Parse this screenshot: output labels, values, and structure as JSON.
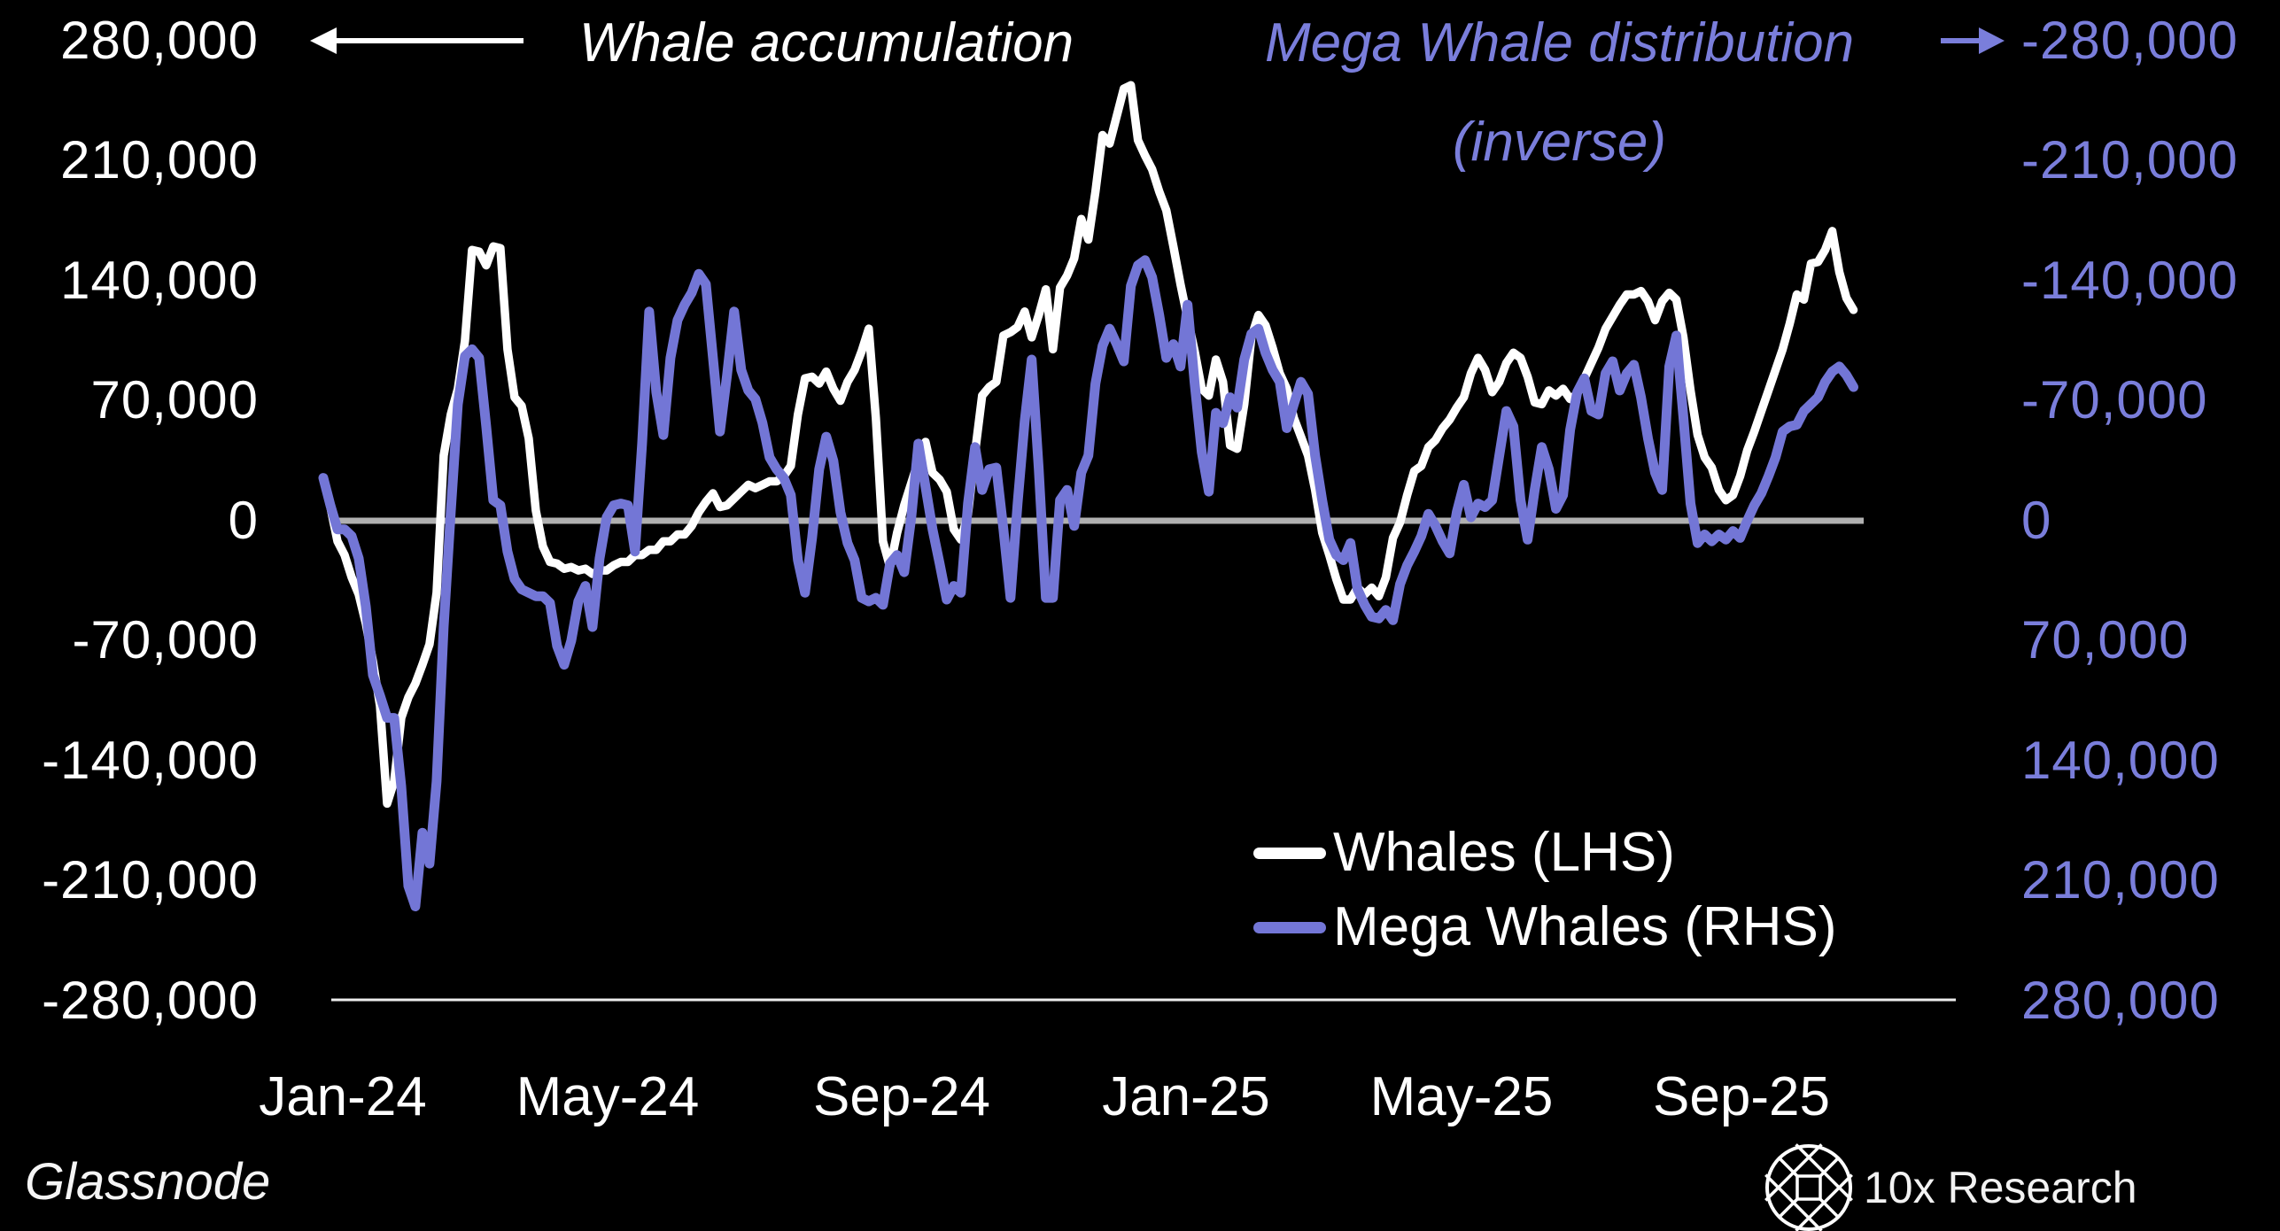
{
  "page": {
    "background": "#000000"
  },
  "header": {
    "left_title": "Whale accumulation",
    "right_title": "Mega Whale distribution",
    "right_subtitle": "(inverse)"
  },
  "axes": {
    "left": {
      "labels": [
        "280,000",
        "210,000",
        "140,000",
        "70,000",
        "0",
        "-70,000",
        "-140,000",
        "-210,000",
        "-280,000"
      ]
    },
    "right": {
      "labels": [
        "-280,000",
        "-210,000",
        "-140,000",
        "-70,000",
        "0",
        "70,000",
        "140,000",
        "210,000",
        "280,000"
      ]
    },
    "x": {
      "labels": [
        "Jan-24",
        "May-24",
        "Sep-24",
        "Jan-25",
        "May-25",
        "Sep-25"
      ]
    }
  },
  "legend": {
    "items": [
      {
        "label": "Whales (LHS)",
        "color": "#ffffff"
      },
      {
        "label": "Mega Whales (RHS)",
        "color": "#7376d6"
      }
    ]
  },
  "source_label": "Glassnode",
  "brand": {
    "name": "10x Research"
  },
  "colors": {
    "background": "#000000",
    "whales_line": "#ffffff",
    "mega_whales_line": "#7376d6",
    "purple_text": "#7a7edb",
    "zero_line": "#b0b0b0",
    "axis_line": "#ededed"
  },
  "chart_data": {
    "type": "line",
    "title": "Whale accumulation vs Mega Whale distribution (inverse)",
    "grid": false,
    "legend_position": "inside lower right",
    "x_axis": {
      "unit": "months since Jan-2024",
      "start_months": -0.277,
      "step_months": 0.1006,
      "tick_months": [
        0,
        4,
        8,
        12,
        16,
        20
      ],
      "tick_labels": [
        "Jan-24",
        "May-24",
        "Sep-24",
        "Jan-25",
        "May-25",
        "Sep-25"
      ]
    },
    "y_axis_left": {
      "title": "Whale accumulation",
      "range": [
        -280000,
        280000
      ],
      "tick_step": 70000
    },
    "y_axis_right": {
      "title": "Mega Whale distribution (inverse)",
      "range_displayed_top_to_bottom": [
        -280000,
        280000
      ],
      "inverted_mirror_of_left": true
    },
    "zero_baseline": 0,
    "unit_value": 1000,
    "series": [
      {
        "name": "Whales (LHS)",
        "axis": "left",
        "color": "#ffffff",
        "values": [
          25,
          8,
          -12,
          -20,
          -33,
          -43,
          -60,
          -82,
          -108,
          -165,
          -152,
          -115,
          -103,
          -95,
          -84,
          -72,
          -42,
          38,
          62,
          77,
          105,
          158,
          157,
          149,
          160,
          159,
          100,
          72,
          67,
          48,
          6,
          -15,
          -24,
          -25,
          -28,
          -27,
          -29,
          -28,
          -31,
          -29,
          -29,
          -26,
          -24,
          -24,
          -20,
          -20,
          -17,
          -17,
          -12,
          -12,
          -8,
          -8,
          -3,
          5,
          11,
          16,
          8,
          9,
          13,
          17,
          21,
          19,
          21,
          23,
          23,
          26,
          32,
          62,
          83,
          84,
          80,
          87,
          77,
          70,
          81,
          88,
          99,
          112,
          60,
          -12,
          -27,
          -7,
          9,
          22,
          35,
          46,
          28,
          24,
          17,
          -5,
          -11,
          4,
          40,
          73,
          78,
          81,
          108,
          110,
          113,
          122,
          107,
          120,
          135,
          100,
          136,
          143,
          153,
          176,
          164,
          192,
          225,
          220,
          236,
          252,
          254,
          222,
          213,
          205,
          192,
          181,
          160,
          138,
          118,
          99,
          77,
          73,
          94,
          81,
          44,
          42,
          68,
          107,
          120,
          114,
          101,
          86,
          77,
          60,
          49,
          38,
          18,
          -7,
          -20,
          -34,
          -46,
          -46,
          -39,
          -43,
          -39,
          -44,
          -33,
          -10,
          -1,
          15,
          29,
          32,
          43,
          47,
          54,
          59,
          66,
          72,
          86,
          95,
          88,
          75,
          81,
          92,
          98,
          95,
          84,
          69,
          68,
          76,
          73,
          77,
          71,
          74,
          83,
          92,
          101,
          112,
          119,
          126,
          132,
          132,
          134,
          128,
          117,
          128,
          133,
          129,
          107,
          76,
          50,
          37,
          31,
          18,
          12,
          15,
          26,
          41,
          52,
          64,
          76,
          88,
          100,
          115,
          132,
          129,
          150,
          151,
          158,
          169,
          145,
          130,
          123
        ]
      },
      {
        "name": "Mega Whales (RHS)",
        "axis": "right-inverse",
        "color": "#7376d6",
        "values": [
          25,
          9,
          -5,
          -5,
          -9,
          -22,
          -50,
          -90,
          -102,
          -115,
          -115,
          -155,
          -213,
          -225,
          -182,
          -200,
          -152,
          -62,
          5,
          68,
          96,
          100,
          95,
          55,
          12,
          9,
          -18,
          -34,
          -40,
          -42,
          -44,
          -44,
          -48,
          -73,
          -84,
          -70,
          -47,
          -38,
          -62,
          -22,
          2,
          9,
          10,
          9,
          -18,
          45,
          122,
          75,
          50,
          95,
          117,
          126,
          133,
          144,
          138,
          95,
          52,
          85,
          122,
          88,
          76,
          71,
          57,
          37,
          30,
          25,
          15,
          -23,
          -42,
          -10,
          30,
          49,
          35,
          5,
          -13,
          -23,
          -45,
          -47,
          -45,
          -49,
          -25,
          -20,
          -30,
          2,
          45,
          20,
          -5,
          -25,
          -46,
          -38,
          -42,
          10,
          43,
          18,
          30,
          31,
          -5,
          -45,
          10,
          58,
          94,
          30,
          -45,
          -45,
          12,
          18,
          -3,
          28,
          38,
          80,
          102,
          112,
          103,
          93,
          137,
          149,
          152,
          142,
          120,
          95,
          103,
          90,
          126,
          80,
          40,
          17,
          63,
          57,
          72,
          66,
          94,
          109,
          112,
          98,
          88,
          81,
          54,
          68,
          81,
          74,
          38,
          12,
          -11,
          -20,
          -23,
          -13,
          -40,
          -49,
          -56,
          -57,
          -52,
          -58,
          -37,
          -26,
          -18,
          -9,
          4,
          -3,
          -12,
          -19,
          5,
          21,
          2,
          10,
          8,
          12,
          38,
          64,
          55,
          12,
          -11,
          18,
          43,
          30,
          7,
          15,
          53,
          75,
          83,
          64,
          62,
          86,
          93,
          76,
          86,
          91,
          72,
          48,
          28,
          18,
          90,
          108,
          60,
          10,
          -13,
          -8,
          -12,
          -8,
          -11,
          -6,
          -10,
          0,
          9,
          16,
          26,
          37,
          52,
          55,
          56,
          64,
          68,
          72,
          81,
          87,
          90,
          85,
          78
        ]
      }
    ]
  }
}
